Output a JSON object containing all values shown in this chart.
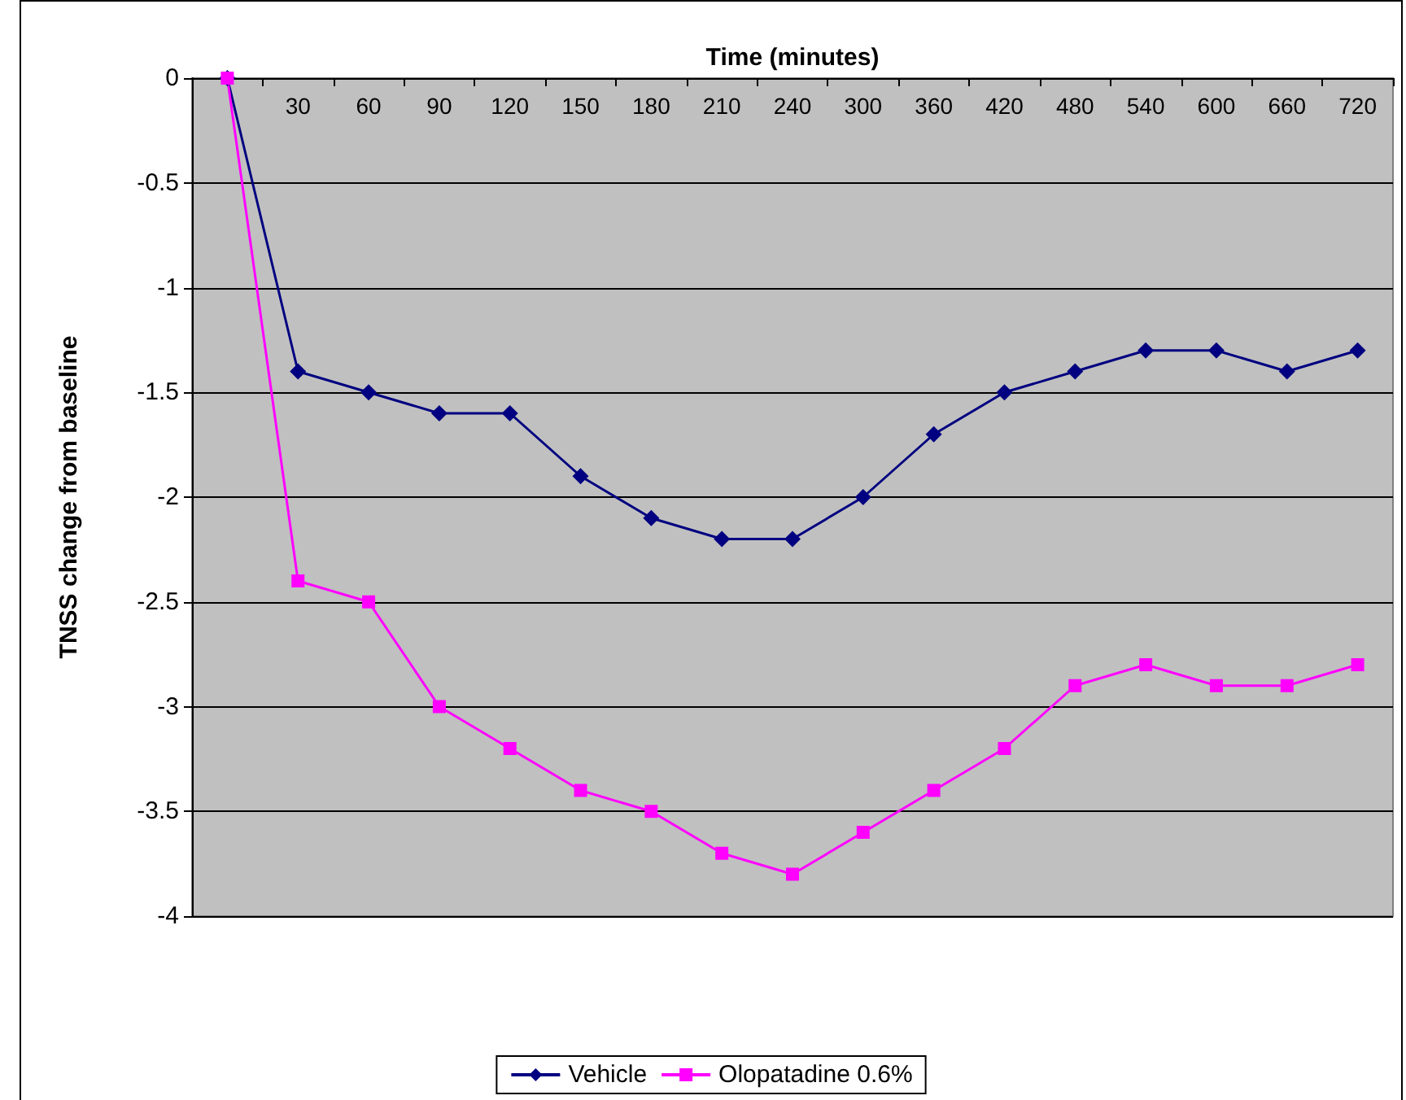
{
  "chart_data": {
    "type": "line",
    "xlabel": "Time (minutes)",
    "ylabel": "TNSS change from baseline",
    "categories": [
      null,
      "30",
      "60",
      "90",
      "120",
      "150",
      "180",
      "210",
      "240",
      "300",
      "360",
      "420",
      "480",
      "540",
      "600",
      "660",
      "720"
    ],
    "series": [
      {
        "name": "Vehicle",
        "color": "#000080",
        "marker": "diamond",
        "values": [
          0,
          -1.4,
          -1.5,
          -1.6,
          -1.6,
          -1.9,
          -2.1,
          -2.2,
          -2.2,
          -2.0,
          -1.7,
          -1.5,
          -1.4,
          -1.3,
          -1.3,
          -1.4,
          -1.3
        ]
      },
      {
        "name": "Olopatadine 0.6%",
        "color": "#ff00ff",
        "marker": "square",
        "values": [
          0,
          -2.4,
          -2.5,
          -3.0,
          -3.2,
          -3.4,
          -3.5,
          -3.7,
          -3.8,
          -3.6,
          -3.4,
          -3.2,
          -2.9,
          -2.8,
          -2.9,
          -2.9,
          -2.8
        ]
      }
    ],
    "ylim": [
      -4,
      0
    ],
    "yticks": [
      -4,
      -3.5,
      -3,
      -2.5,
      -2,
      -1.5,
      -1,
      -0.5,
      0
    ],
    "grid": "y",
    "legend": "bottom",
    "line_style": "solid"
  }
}
